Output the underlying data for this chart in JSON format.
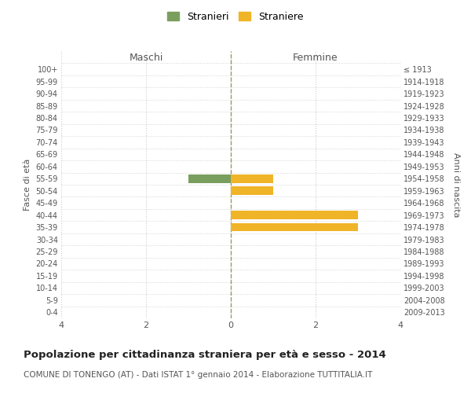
{
  "age_groups": [
    "100+",
    "95-99",
    "90-94",
    "85-89",
    "80-84",
    "75-79",
    "70-74",
    "65-69",
    "60-64",
    "55-59",
    "50-54",
    "45-49",
    "40-44",
    "35-39",
    "30-34",
    "25-29",
    "20-24",
    "15-19",
    "10-14",
    "5-9",
    "0-4"
  ],
  "birth_years": [
    "≤ 1913",
    "1914-1918",
    "1919-1923",
    "1924-1928",
    "1929-1933",
    "1934-1938",
    "1939-1943",
    "1944-1948",
    "1949-1953",
    "1954-1958",
    "1959-1963",
    "1964-1968",
    "1969-1973",
    "1974-1978",
    "1979-1983",
    "1984-1988",
    "1989-1993",
    "1994-1998",
    "1999-2003",
    "2004-2008",
    "2009-2013"
  ],
  "maschi_stranieri": [
    0,
    0,
    0,
    0,
    0,
    0,
    0,
    0,
    0,
    1,
    0,
    0,
    0,
    0,
    0,
    0,
    0,
    0,
    0,
    0,
    0
  ],
  "femmine_straniere": [
    0,
    0,
    0,
    0,
    0,
    0,
    0,
    0,
    0,
    1,
    1,
    0,
    3,
    3,
    0,
    0,
    0,
    0,
    0,
    0,
    0
  ],
  "color_maschi": "#7a9e5e",
  "color_femmine": "#f0b429",
  "bar_height": 0.7,
  "xlim": 4,
  "title_main": "Popolazione per cittadinanza straniera per età e sesso - 2014",
  "title_sub": "COMUNE DI TONENGO (AT) - Dati ISTAT 1° gennaio 2014 - Elaborazione TUTTITALIA.IT",
  "label_maschi": "Maschi",
  "label_femmine": "Femmine",
  "label_fascia": "Fasce di età",
  "label_anni": "Anni di nascita",
  "legend_stranieri": "Stranieri",
  "legend_straniere": "Straniere",
  "bg_color": "#ffffff",
  "grid_color": "#cccccc",
  "axis_color": "#555555",
  "text_color": "#555555",
  "center_line_color": "#999966"
}
